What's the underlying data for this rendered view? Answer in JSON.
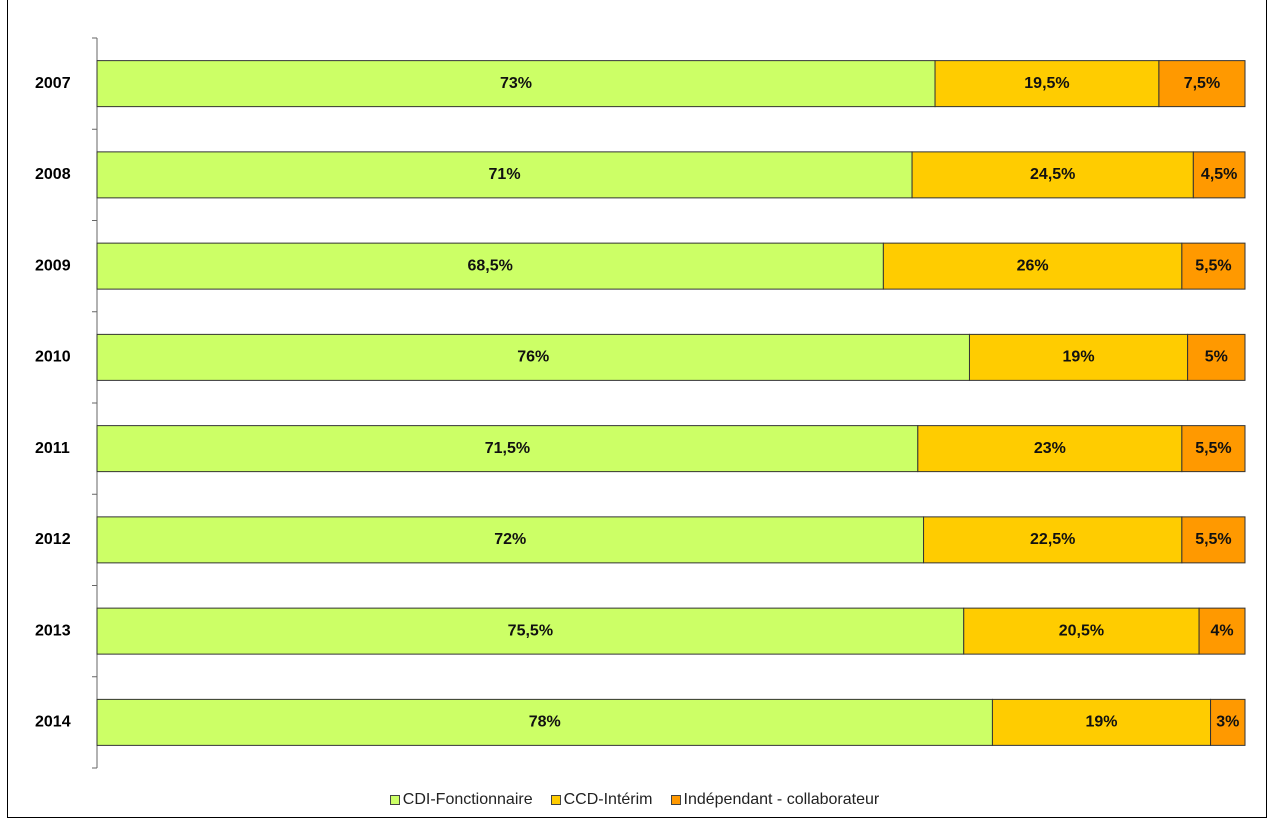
{
  "chart_data": {
    "type": "bar",
    "orientation": "horizontal",
    "stacked": true,
    "categories": [
      "2007",
      "2008",
      "2009",
      "2010",
      "2011",
      "2012",
      "2013",
      "2014"
    ],
    "series": [
      {
        "name": "CDI-Fonctionnaire",
        "color": "#ccff66",
        "values": [
          73,
          71,
          68.5,
          76,
          71.5,
          72,
          75.5,
          78
        ],
        "labels": [
          "73%",
          "71%",
          "68,5%",
          "76%",
          "71,5%",
          "72%",
          "75,5%",
          "78%"
        ]
      },
      {
        "name": "CCD-Intérim",
        "color": "#ffcc00",
        "values": [
          19.5,
          24.5,
          26,
          19,
          23,
          22.5,
          20.5,
          19
        ],
        "labels": [
          "19,5%",
          "24,5%",
          "26%",
          "19%",
          "23%",
          "22,5%",
          "20,5%",
          "19%"
        ]
      },
      {
        "name": "Indépendant - collaborateur",
        "color": "#ff9900",
        "values": [
          7.5,
          4.5,
          5.5,
          5,
          5.5,
          5.5,
          4,
          3
        ],
        "labels": [
          "7,5%",
          "4,5%",
          "5,5%",
          "5%",
          "5,5%",
          "5,5%",
          "4%",
          "3%"
        ]
      }
    ],
    "xlim": [
      0,
      100
    ],
    "grid": false,
    "legend_position": "bottom"
  }
}
